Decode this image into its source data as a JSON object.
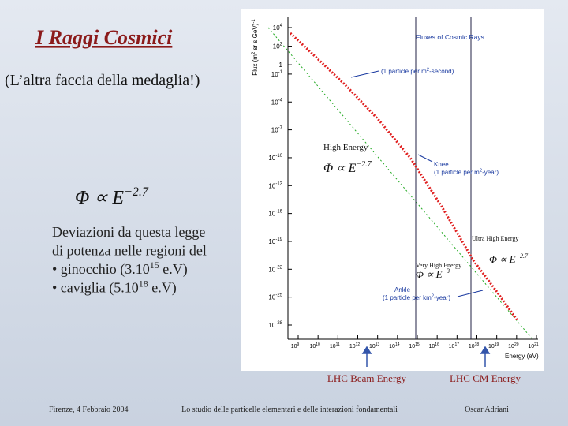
{
  "title": "I Raggi Cosmici",
  "subtitle": "(L’altra faccia della medaglia!)",
  "formula": {
    "text": "Φ ∝ E",
    "sup": "−2.7"
  },
  "body": {
    "lines": [
      {
        "text": "Deviazioni da questa legge"
      },
      {
        "text": "di potenza nelle regioni del"
      },
      {
        "text": "• ginocchio (3.10",
        "sup": "15",
        "after": " e.V)"
      },
      {
        "text": "• caviglia (5.10",
        "sup": "18",
        "after": " e.V)"
      }
    ]
  },
  "plot": {
    "title": "Fluxes of Cosmic Rays",
    "y_label": {
      "text": "Flux (m",
      "sup": "2",
      "after": " sr s GeV)",
      "sup2": "-1"
    },
    "x_label": "Energy (eV)",
    "y_ticks": [
      {
        "base": "10",
        "exp": "4"
      },
      {
        "base": "10",
        "exp": "2"
      },
      {
        "base": "1",
        "exp": "0"
      },
      {
        "base": "10",
        "exp": "-1"
      },
      {
        "base": "10",
        "exp": "-4"
      },
      {
        "base": "10",
        "exp": "-7"
      },
      {
        "base": "10",
        "exp": "-10"
      },
      {
        "base": "10",
        "exp": "-13"
      },
      {
        "base": "10",
        "exp": "-16"
      },
      {
        "base": "10",
        "exp": "-19"
      },
      {
        "base": "10",
        "exp": "-22"
      },
      {
        "base": "10",
        "exp": "-25"
      },
      {
        "base": "10",
        "exp": "-28"
      }
    ],
    "x_ticks": [
      {
        "base": "10",
        "exp": "9"
      },
      {
        "base": "10",
        "exp": "10"
      },
      {
        "base": "10",
        "exp": "11"
      },
      {
        "base": "10",
        "exp": "12"
      },
      {
        "base": "10",
        "exp": "13"
      },
      {
        "base": "10",
        "exp": "14"
      },
      {
        "base": "10",
        "exp": "15"
      },
      {
        "base": "10",
        "exp": "16"
      },
      {
        "base": "10",
        "exp": "17"
      },
      {
        "base": "10",
        "exp": "18"
      },
      {
        "base": "10",
        "exp": "19"
      },
      {
        "base": "10",
        "exp": "20"
      },
      {
        "base": "10",
        "exp": "21"
      }
    ],
    "annotations": {
      "per_second": {
        "text": "(1 particle per m",
        "sup": "2",
        "after": "-second)"
      },
      "knee": {
        "title": "Knee",
        "text": "(1 particle per m",
        "sup": "2",
        "after": "-year)"
      },
      "ankle": {
        "title": "Ankle",
        "text": "(1 particle per km",
        "sup": "2",
        "after": "-year)"
      },
      "high_energy": "High Energy",
      "very_high_energy": "Very High Energy",
      "ultra_high_energy": "Ultra High Energy",
      "formula_high": {
        "text": "Φ ∝ E",
        "sup": "−2.7"
      },
      "formula_very_high": {
        "text": "Φ ∝ E",
        "sup": "−3"
      },
      "formula_ultra_high": {
        "text": "Φ ∝ E",
        "sup": "−2.7"
      }
    }
  },
  "markers": {
    "beam": "LHC Beam Energy",
    "cm": "LHC CM Energy"
  },
  "footer": {
    "left": "Firenze, 4 Febbraio 2004",
    "center": "Lo studio delle particelle elementari e delle interazioni fondamentali",
    "right": "Oscar Adriani"
  }
}
